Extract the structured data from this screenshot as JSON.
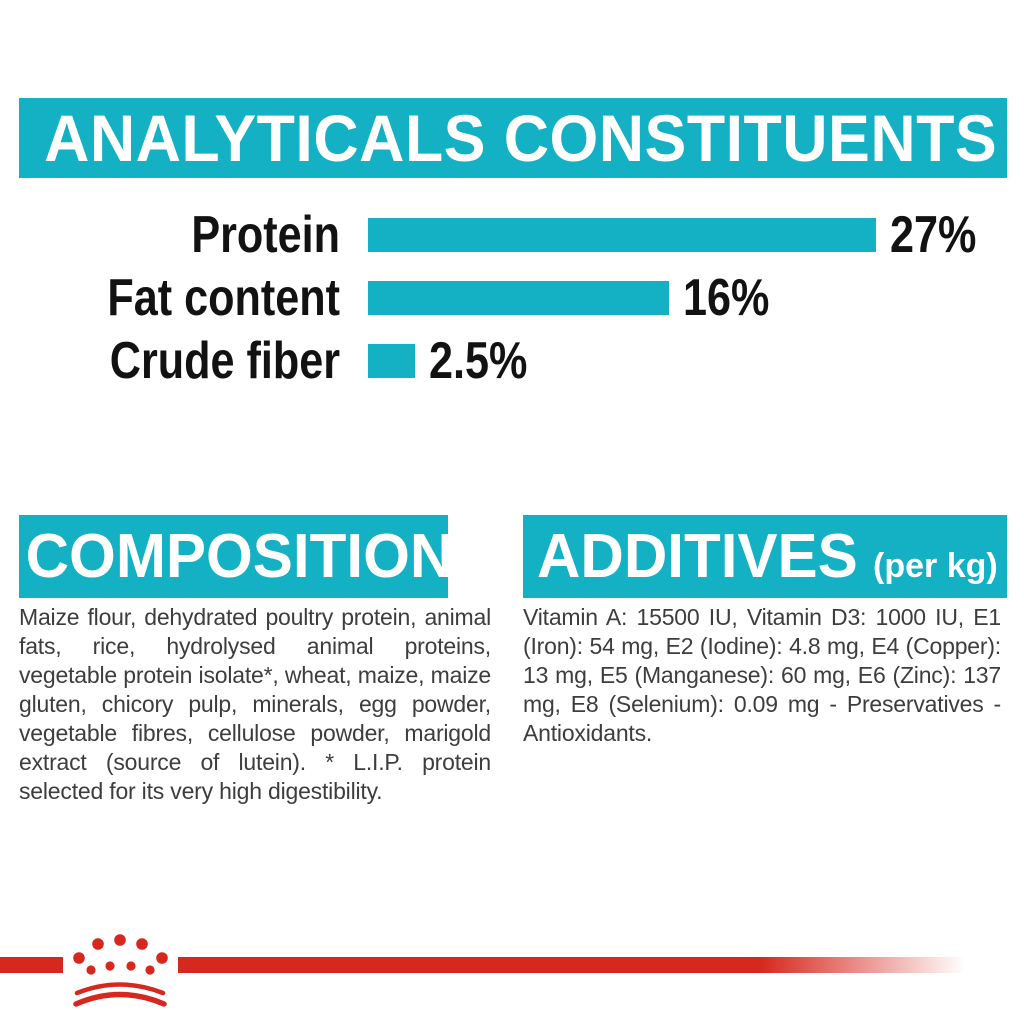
{
  "colors": {
    "teal": "#14B0C4",
    "red": "#D6281E",
    "body_text": "#3D3D3D",
    "chart_label_black": "#121212",
    "header_text_white": "#FFFFFF"
  },
  "analyticals": {
    "title": "ANALYTICALS CONSTITUENTS",
    "rows": [
      {
        "label": "Protein",
        "value_label": "27%",
        "percent": 27
      },
      {
        "label": "Fat content",
        "value_label": "16%",
        "percent": 16
      },
      {
        "label": "Crude fiber",
        "value_label": "2.5%",
        "percent": 2.5
      }
    ]
  },
  "chart_data": {
    "type": "bar",
    "orientation": "horizontal",
    "title": "ANALYTICALS CONSTITUENTS",
    "categories": [
      "Protein",
      "Fat content",
      "Crude fiber"
    ],
    "values": [
      27,
      16,
      2.5
    ],
    "unit": "%",
    "data_labels": [
      "27%",
      "16%",
      "2.5%"
    ],
    "bar_color": "#14B0C4",
    "xlim": [
      0,
      30
    ],
    "grid": false,
    "legend": false
  },
  "composition": {
    "title": "COMPOSITION",
    "body": "Maize flour, dehydrated poultry protein, animal fats, rice, hydrolysed animal proteins, vegetable protein isolate*, wheat, maize, maize gluten, chicory pulp, minerals, egg powder, vegetable fibres, cellulose powder, marigold extract (source of lutein). * L.I.P. protein selected for its very high digestibility."
  },
  "additives": {
    "title": "ADDITIVES",
    "title_suffix": "(per kg)",
    "body": "Vitamin A: 15500 IU, Vitamin D3: 1000 IU, E1 (Iron): 54 mg, E2 (Iodine): 4.8 mg, E4 (Copper): 13 mg, E5 (Manganese): 60 mg, E6 (Zinc): 137 mg, E8 (Selenium): 0.09 mg - Preservatives - Antioxidants."
  },
  "footer": {
    "brand_logo": "royal-canin-crown"
  }
}
